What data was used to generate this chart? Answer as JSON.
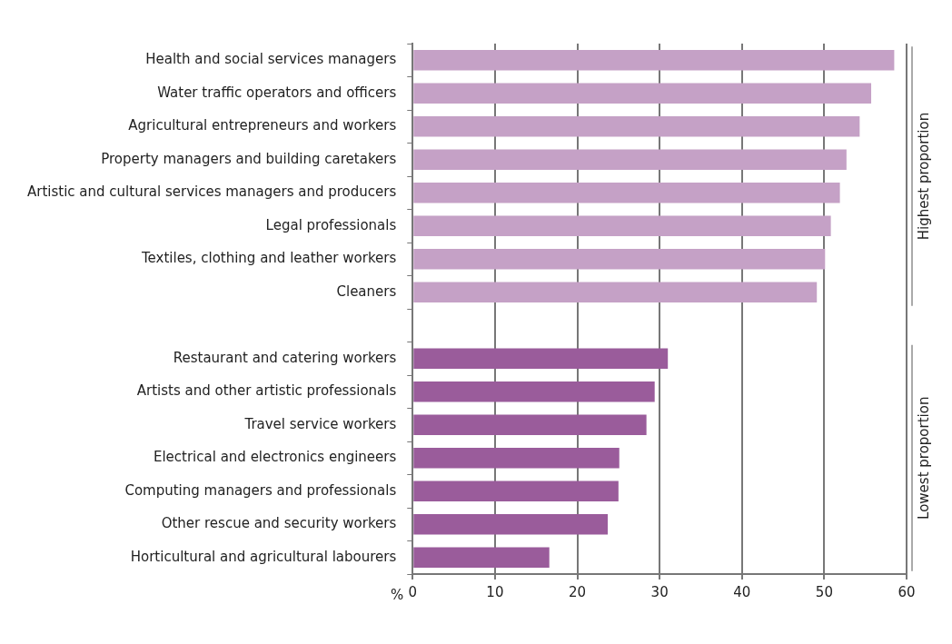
{
  "chart_data": {
    "type": "bar",
    "orientation": "horizontal",
    "xlabel": "%",
    "categories": [
      "Health and social services managers",
      "Water traffic operators and officers",
      "Agricultural entrepreneurs and workers",
      "Property managers and building caretakers",
      "Artistic and cultural services managers and producers",
      "Legal professionals",
      "Textiles, clothing and leather workers",
      "Cleaners",
      null,
      "Restaurant and catering workers",
      "Artists and other artistic professionals",
      "Travel service workers",
      "Electrical and electronics engineers",
      "Computing managers and professionals",
      "Other rescue and security workers",
      "Horticultural and agricultural labourers"
    ],
    "values": [
      58.5,
      55.7,
      54.3,
      52.7,
      51.9,
      50.8,
      50.1,
      49.1,
      null,
      31.0,
      29.4,
      28.4,
      25.1,
      25.0,
      23.7,
      16.6
    ],
    "colors": [
      "#c5a1c6",
      "#c5a1c6",
      "#c5a1c6",
      "#c5a1c6",
      "#c5a1c6",
      "#c5a1c6",
      "#c5a1c6",
      "#c5a1c6",
      null,
      "#9a5c9b",
      "#9a5c9b",
      "#9a5c9b",
      "#9a5c9b",
      "#9a5c9b",
      "#9a5c9b",
      "#9a5c9b"
    ],
    "xlim": [
      0,
      60
    ],
    "xticks": [
      0,
      10,
      20,
      30,
      40,
      50,
      60
    ],
    "grid": "x",
    "legend": false,
    "annotations": [
      "Highest proportion",
      "Lowest proportion"
    ]
  }
}
